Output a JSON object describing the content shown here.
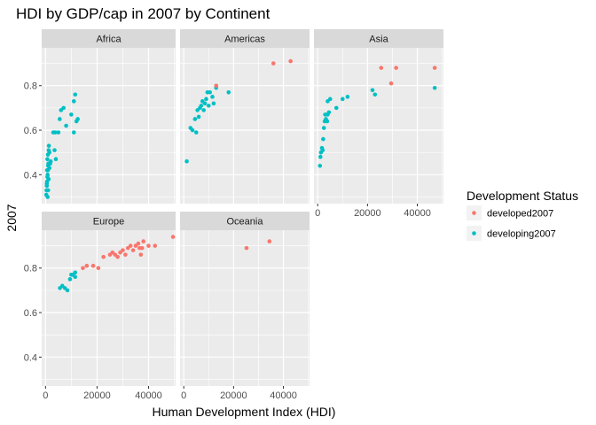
{
  "chart_data": {
    "type": "scatter",
    "title": "HDI by GDP/cap in 2007 by Continent",
    "xlabel": "Human Development Index (HDI)",
    "ylabel": "2007",
    "xlim": [
      -1500,
      50500
    ],
    "ylim": [
      0.27,
      0.97
    ],
    "xticks": [
      0,
      20000,
      40000
    ],
    "xtick_labels": [
      "0",
      "20000",
      "40000"
    ],
    "yticks": [
      0.4,
      0.6,
      0.8
    ],
    "ytick_labels": [
      "0.4",
      "0.6",
      "0.8"
    ],
    "grid": true,
    "legend": {
      "title": "Development Status",
      "position": "right",
      "entries": [
        {
          "label": "developed2007",
          "color": "#F8766D"
        },
        {
          "label": "developing2007",
          "color": "#00BFC4"
        }
      ]
    },
    "facets": [
      {
        "name": "Africa",
        "developed2007": [],
        "developing2007": [
          [
            300,
            0.31
          ],
          [
            400,
            0.33
          ],
          [
            500,
            0.35
          ],
          [
            600,
            0.37
          ],
          [
            700,
            0.39
          ],
          [
            800,
            0.4
          ],
          [
            900,
            0.42
          ],
          [
            1000,
            0.44
          ],
          [
            1100,
            0.45
          ],
          [
            700,
            0.47
          ],
          [
            900,
            0.49
          ],
          [
            1200,
            0.51
          ],
          [
            1300,
            0.53
          ],
          [
            1500,
            0.43
          ],
          [
            1800,
            0.45
          ],
          [
            2000,
            0.46
          ],
          [
            600,
            0.42
          ],
          [
            1200,
            0.38
          ],
          [
            500,
            0.36
          ],
          [
            800,
            0.3
          ],
          [
            1500,
            0.5
          ],
          [
            4000,
            0.47
          ],
          [
            3500,
            0.51
          ],
          [
            1000,
            0.33
          ],
          [
            3000,
            0.59
          ],
          [
            3800,
            0.59
          ],
          [
            5000,
            0.59
          ],
          [
            5500,
            0.65
          ],
          [
            6000,
            0.69
          ],
          [
            7000,
            0.7
          ],
          [
            8000,
            0.62
          ],
          [
            10000,
            0.67
          ],
          [
            11000,
            0.59
          ],
          [
            12000,
            0.64
          ],
          [
            12500,
            0.65
          ],
          [
            11000,
            0.73
          ],
          [
            11500,
            0.76
          ]
        ]
      },
      {
        "name": "Americas",
        "developed2007": [
          [
            36000,
            0.9
          ],
          [
            42900,
            0.91
          ],
          [
            13000,
            0.8
          ]
        ],
        "developing2007": [
          [
            1200,
            0.46
          ],
          [
            2700,
            0.61
          ],
          [
            3500,
            0.6
          ],
          [
            5000,
            0.59
          ],
          [
            4500,
            0.65
          ],
          [
            6000,
            0.66
          ],
          [
            5500,
            0.69
          ],
          [
            7000,
            0.71
          ],
          [
            7500,
            0.73
          ],
          [
            8000,
            0.69
          ],
          [
            8500,
            0.72
          ],
          [
            9000,
            0.74
          ],
          [
            9500,
            0.77
          ],
          [
            10500,
            0.77
          ],
          [
            11500,
            0.75
          ],
          [
            12000,
            0.72
          ],
          [
            13000,
            0.79
          ],
          [
            18000,
            0.77
          ],
          [
            6500,
            0.7
          ],
          [
            10000,
            0.71
          ]
        ]
      },
      {
        "name": "Asia",
        "developed2007": [
          [
            25500,
            0.88
          ],
          [
            31500,
            0.88
          ],
          [
            29500,
            0.81
          ],
          [
            47000,
            0.88
          ]
        ],
        "developing2007": [
          [
            900,
            0.44
          ],
          [
            1100,
            0.48
          ],
          [
            1300,
            0.5
          ],
          [
            1700,
            0.52
          ],
          [
            2000,
            0.51
          ],
          [
            2200,
            0.56
          ],
          [
            2500,
            0.61
          ],
          [
            2800,
            0.64
          ],
          [
            3000,
            0.67
          ],
          [
            3300,
            0.65
          ],
          [
            3800,
            0.64
          ],
          [
            4000,
            0.67
          ],
          [
            4500,
            0.68
          ],
          [
            4000,
            0.73
          ],
          [
            5000,
            0.74
          ],
          [
            7500,
            0.7
          ],
          [
            10000,
            0.74
          ],
          [
            12000,
            0.75
          ],
          [
            22000,
            0.78
          ],
          [
            23000,
            0.76
          ],
          [
            47000,
            0.79
          ]
        ]
      },
      {
        "name": "Europe",
        "developed2007": [
          [
            14500,
            0.8
          ],
          [
            16000,
            0.81
          ],
          [
            18500,
            0.81
          ],
          [
            20500,
            0.8
          ],
          [
            22500,
            0.85
          ],
          [
            25000,
            0.86
          ],
          [
            27000,
            0.86
          ],
          [
            28000,
            0.85
          ],
          [
            29000,
            0.87
          ],
          [
            30000,
            0.88
          ],
          [
            31000,
            0.86
          ],
          [
            32000,
            0.89
          ],
          [
            33000,
            0.9
          ],
          [
            34000,
            0.88
          ],
          [
            35000,
            0.9
          ],
          [
            36000,
            0.91
          ],
          [
            37000,
            0.86
          ],
          [
            37500,
            0.89
          ],
          [
            38000,
            0.92
          ],
          [
            40000,
            0.9
          ],
          [
            42500,
            0.9
          ],
          [
            49500,
            0.94
          ],
          [
            36500,
            0.89
          ],
          [
            26000,
            0.87
          ]
        ],
        "developing2007": [
          [
            5600,
            0.71
          ],
          [
            6500,
            0.72
          ],
          [
            7500,
            0.71
          ],
          [
            8500,
            0.7
          ],
          [
            9500,
            0.75
          ],
          [
            10000,
            0.77
          ],
          [
            10500,
            0.77
          ],
          [
            11500,
            0.76
          ],
          [
            11500,
            0.78
          ]
        ]
      },
      {
        "name": "Oceania",
        "developed2007": [
          [
            25200,
            0.89
          ],
          [
            34400,
            0.92
          ]
        ],
        "developing2007": []
      }
    ]
  }
}
